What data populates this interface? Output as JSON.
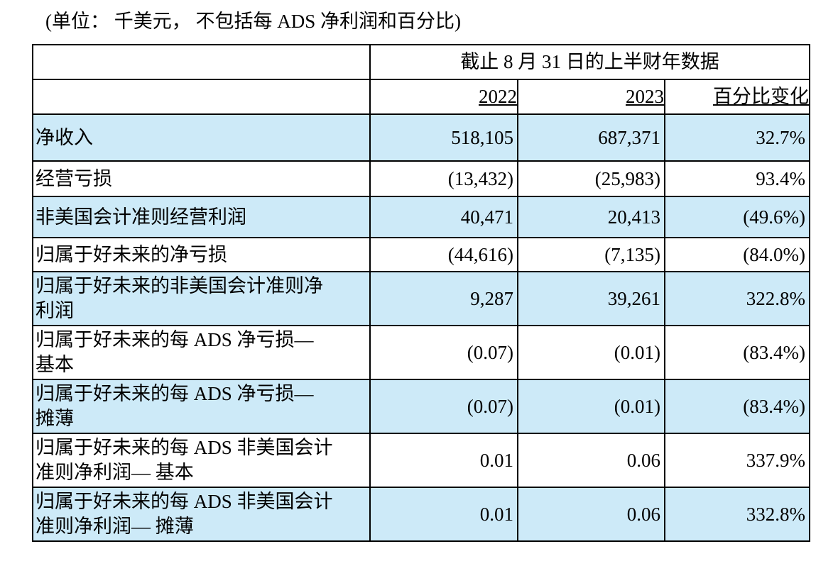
{
  "caption": "(单位： 千美元， 不包括每 ADS 净利润和百分比)",
  "table": {
    "span_header": "截止 8 月 31 日的上半财年数据",
    "columns": {
      "y2022": "2022",
      "y2023": "2023",
      "pct_change": "百分比变化"
    },
    "rows": [
      {
        "label": "净收入",
        "v2022": "518,105",
        "v2023": "687,371",
        "pct": "32.7%"
      },
      {
        "label": "经营亏损",
        "v2022": "(13,432)",
        "v2023": "(25,983)",
        "pct": "93.4%"
      },
      {
        "label": "非美国会计准则经营利润",
        "v2022": "40,471",
        "v2023": "20,413",
        "pct": "(49.6%)"
      },
      {
        "label": "归属于好未来的净亏损",
        "v2022": "(44,616)",
        "v2023": "(7,135)",
        "pct": "(84.0%)"
      },
      {
        "label": "归属于好未来的非美国会计准则净\n利润",
        "v2022": "9,287",
        "v2023": "39,261",
        "pct": "322.8%"
      },
      {
        "label": "归属于好未来的每 ADS 净亏损—\n基本",
        "v2022": "(0.07)",
        "v2023": "(0.01)",
        "pct": "(83.4%)"
      },
      {
        "label": "归属于好未来的每 ADS 净亏损—\n摊薄",
        "v2022": "(0.07)",
        "v2023": "(0.01)",
        "pct": "(83.4%)"
      },
      {
        "label": "归属于好未来的每 ADS 非美国会计\n准则净利润— 基本",
        "v2022": "0.01",
        "v2023": "0.06",
        "pct": "337.9%"
      },
      {
        "label": "归属于好未来的每 ADS 非美国会计\n准则净利润— 摊薄",
        "v2022": "0.01",
        "v2023": "0.06",
        "pct": "332.8%"
      }
    ],
    "colors": {
      "row_highlight": "#cdeaf8",
      "border": "#000000",
      "text": "#000000",
      "background": "#ffffff"
    }
  }
}
